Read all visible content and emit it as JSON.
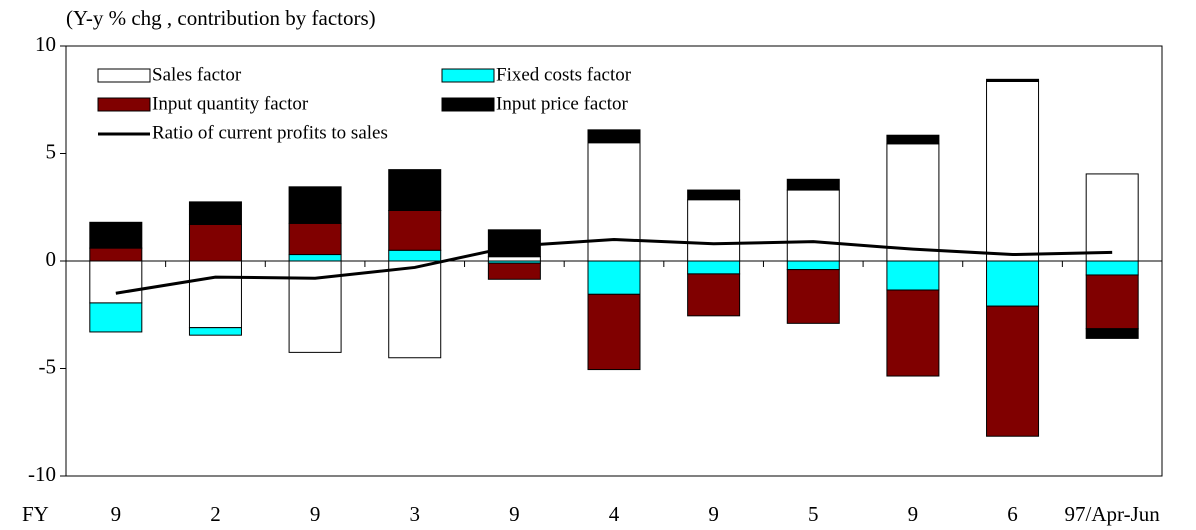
{
  "chart_data": {
    "type": "bar",
    "stacked": true,
    "title": "(Y-y % chg , contribution by factors)",
    "xlabel": "FY",
    "categories": [
      "9",
      "2",
      "9",
      "3",
      "9",
      "4",
      "9",
      "5",
      "9",
      "6",
      "97/Apr-Jun"
    ],
    "series": [
      {
        "name": "Sales factor",
        "color": "#ffffff",
        "values": [
          -1.95,
          -3.1,
          -4.25,
          -4.5,
          0.2,
          5.5,
          2.85,
          3.3,
          5.45,
          8.35,
          4.05
        ]
      },
      {
        "name": "Fixed costs factor",
        "color": "#00ffff",
        "values": [
          -1.35,
          -0.35,
          0.3,
          0.5,
          -0.1,
          -1.55,
          -0.6,
          -0.4,
          -1.35,
          -2.1,
          -0.65
        ]
      },
      {
        "name": "Input quantity factor",
        "color": "#800000",
        "values": [
          0.6,
          1.7,
          1.45,
          1.85,
          -0.75,
          -3.5,
          -1.95,
          -2.5,
          -4.0,
          -6.05,
          -2.5
        ]
      },
      {
        "name": "Input price factor",
        "color": "#000000",
        "values": [
          1.2,
          1.05,
          1.7,
          1.9,
          1.25,
          0.6,
          0.45,
          0.5,
          0.4,
          0.1,
          -0.45
        ]
      },
      {
        "name": "Ratio of current profits to sales",
        "type": "line",
        "color": "#000000",
        "values": [
          -1.5,
          -0.75,
          -0.8,
          -0.3,
          0.7,
          1.0,
          0.8,
          0.9,
          0.55,
          0.3,
          0.4
        ]
      }
    ],
    "ylim": [
      -10,
      10
    ],
    "yticks": [
      10,
      5,
      0,
      -5,
      -10
    ],
    "grid": false,
    "legend": "upper left"
  }
}
